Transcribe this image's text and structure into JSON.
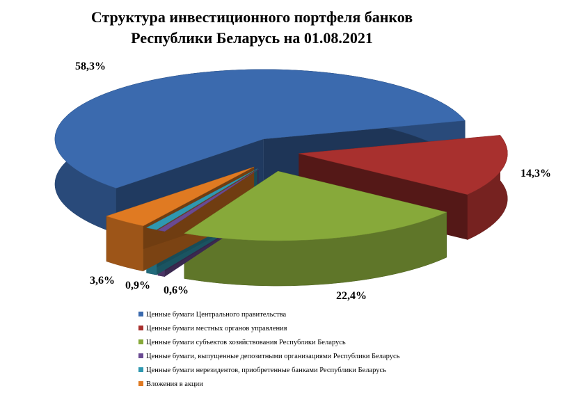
{
  "chart_data": {
    "type": "pie3d",
    "title": [
      "Структура инвестиционного портфеля банков",
      "Республики Беларусь на 01.08.2021"
    ],
    "series": [
      {
        "name": "Ценные бумаги Центрального правительства",
        "color": "#3b6aae",
        "values": [
          58.3
        ],
        "value_labels": [
          "58,3%"
        ]
      },
      {
        "name": "Ценные бумаги местных органов управления",
        "color": "#a8302e",
        "values": [
          14.3
        ],
        "value_labels": [
          "14,3%"
        ]
      },
      {
        "name": "Ценные бумаги субъектов хозяйствования Республики Беларусь",
        "color": "#87a93a",
        "values": [
          22.4
        ],
        "value_labels": [
          "22,4%"
        ]
      },
      {
        "name": "Ценные бумаги, выпущенные депозитными организациями Республики Беларусь",
        "color": "#6a4a92",
        "values": [
          0.6
        ],
        "value_labels": [
          "0,6%"
        ]
      },
      {
        "name": "Ценные бумаги нерезидентов, приобретенные банками Республики Беларусь",
        "color": "#2f98b0",
        "values": [
          0.9
        ],
        "value_labels": [
          "0,9%"
        ]
      },
      {
        "name": "Вложения в акции",
        "color": "#e07a22",
        "values": [
          3.6
        ],
        "value_labels": [
          "3,6%"
        ]
      }
    ]
  }
}
